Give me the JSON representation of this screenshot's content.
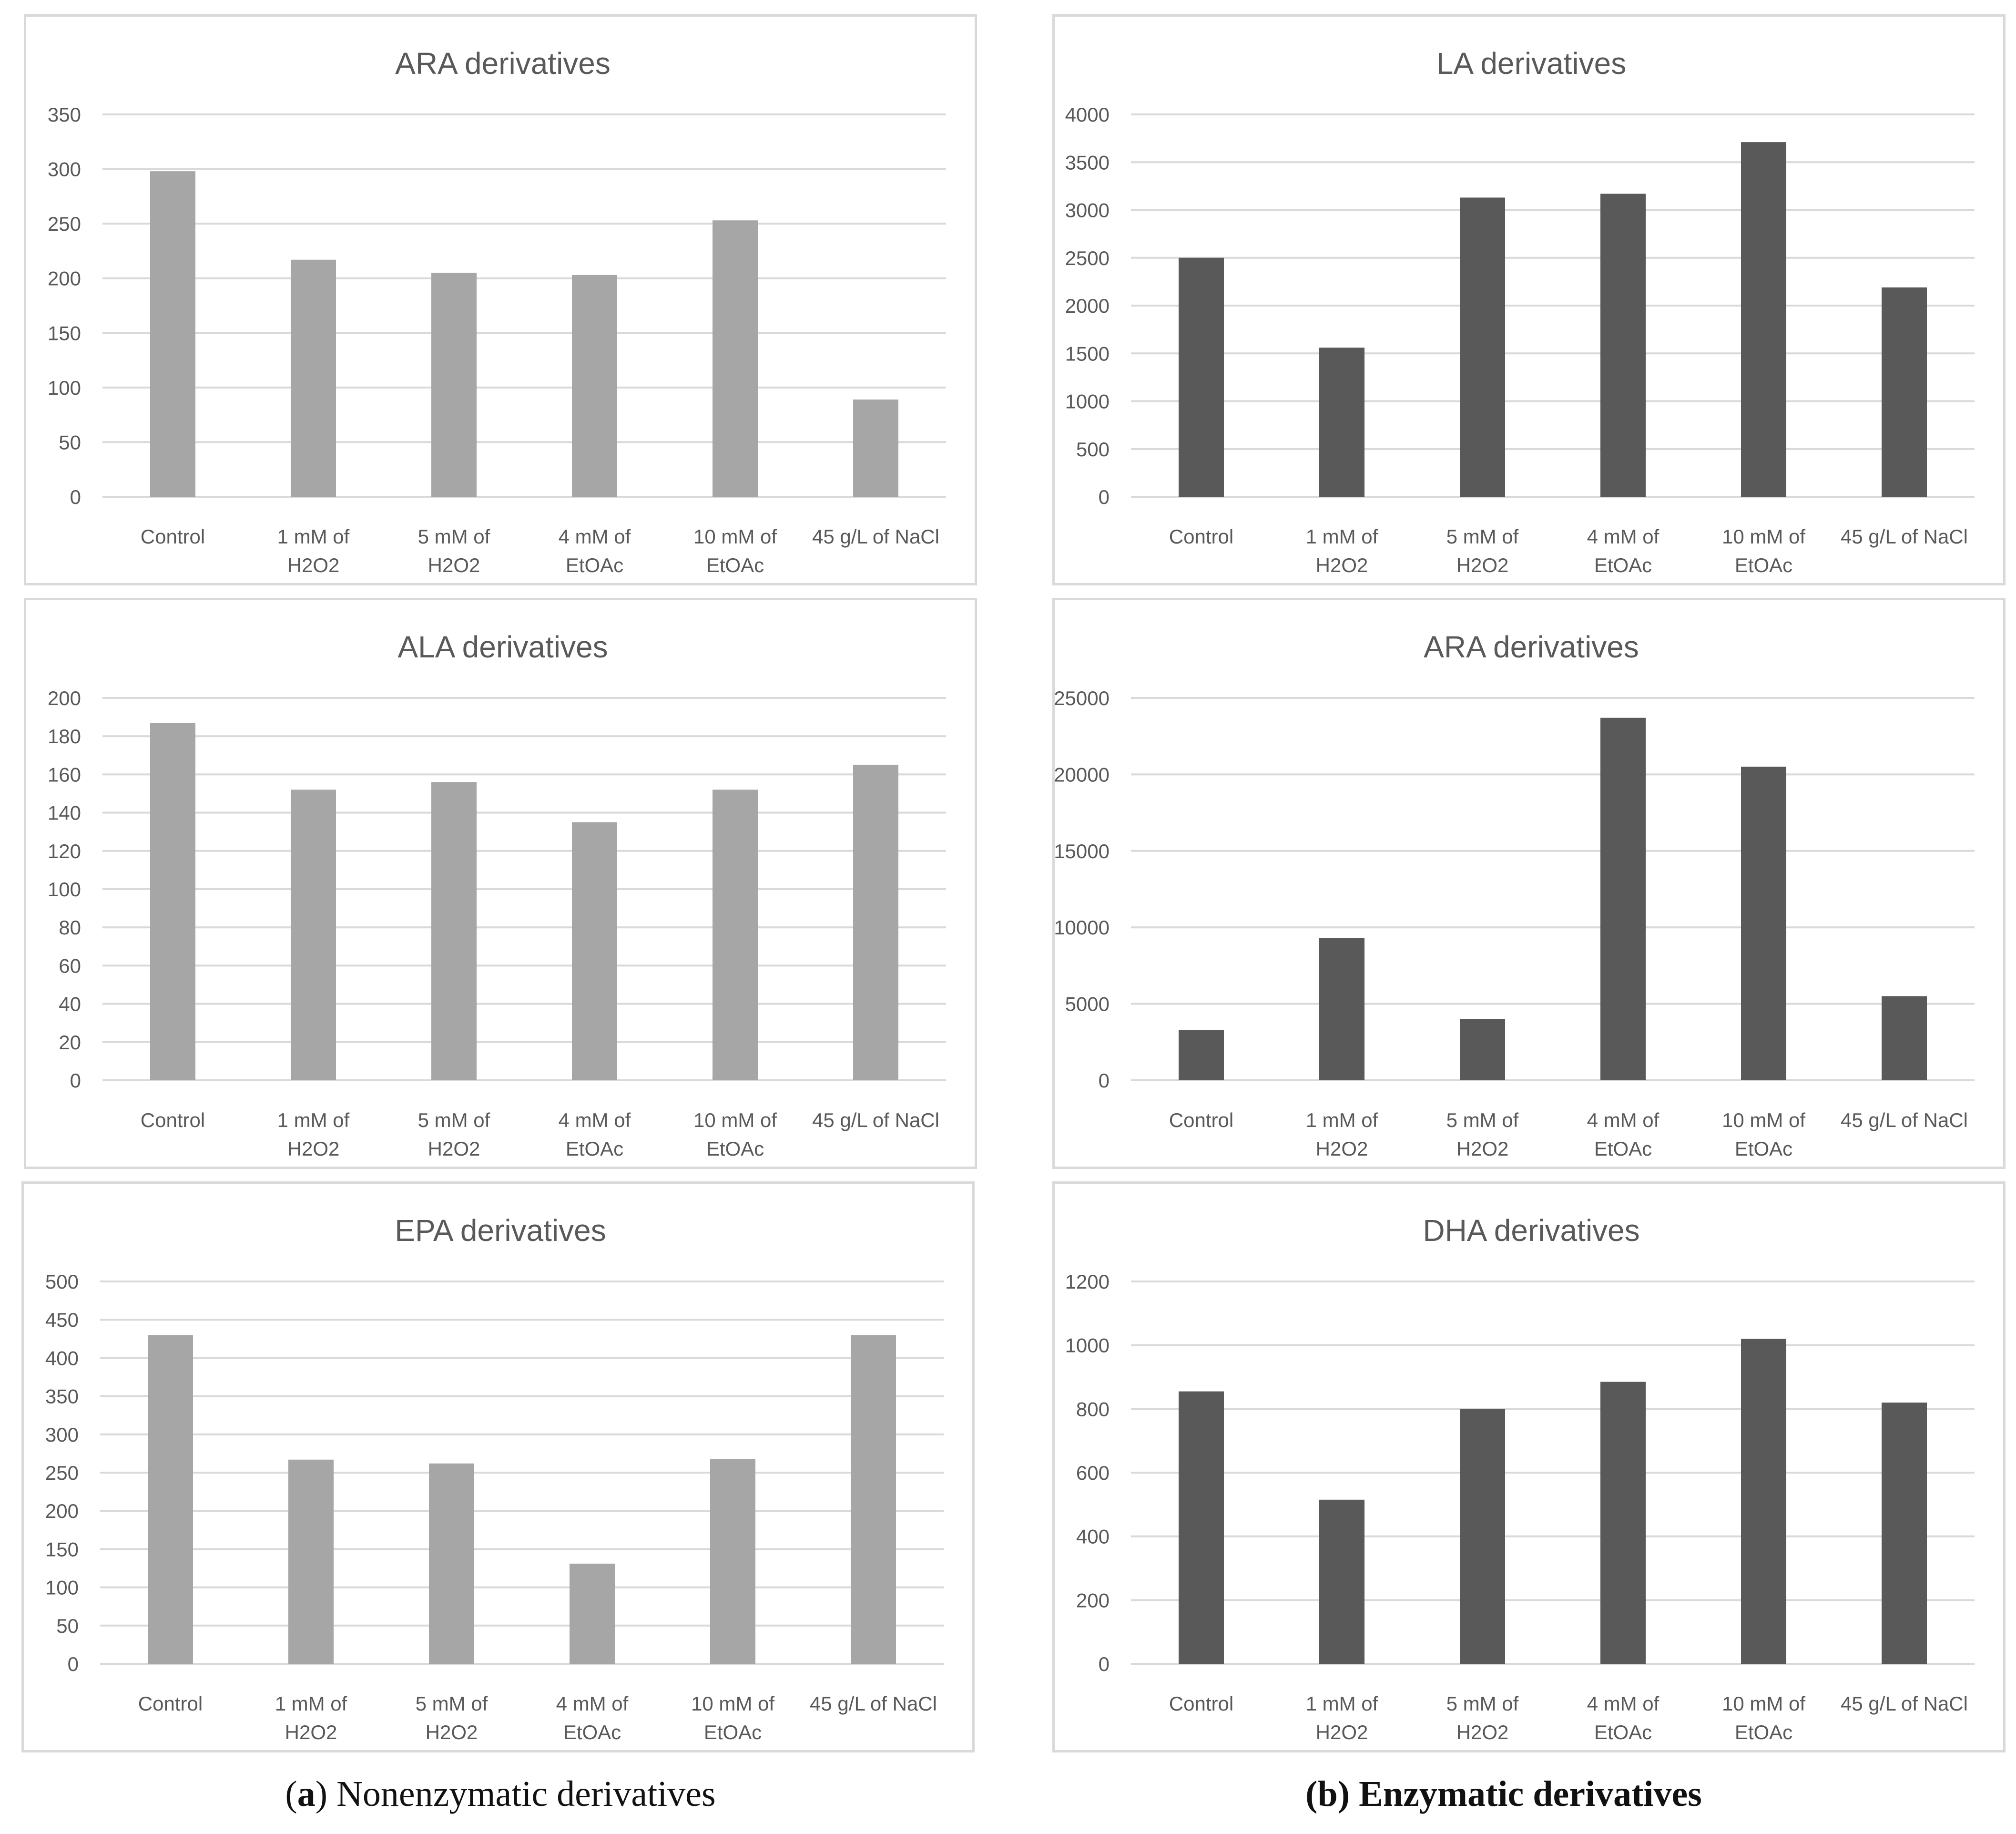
{
  "colors": {
    "nonenzymatic": "#a6a6a6",
    "enzymatic": "#595959"
  },
  "captions": {
    "a": {
      "letter": "a",
      "text": " Nonenzymatic derivatives"
    },
    "b": {
      "letter": "b",
      "text": " Enzymatic derivatives"
    }
  },
  "chart_data": [
    {
      "type": "bar",
      "panel": "a",
      "title": "ARA derivatives",
      "categories": [
        [
          "Control"
        ],
        [
          "1 mM of",
          "H2O2"
        ],
        [
          "5 mM of",
          "H2O2"
        ],
        [
          "4 mM of",
          "EtOAc"
        ],
        [
          "10 mM of",
          "EtOAc"
        ],
        [
          "45 g/L of NaCl"
        ]
      ],
      "values": [
        298,
        217,
        205,
        203,
        253,
        89
      ],
      "yticks": [
        0,
        50,
        100,
        150,
        200,
        250,
        300,
        350
      ],
      "ylim": [
        0,
        350
      ],
      "grid": true,
      "color": "#a6a6a6"
    },
    {
      "type": "bar",
      "panel": "a",
      "title": "ALA derivatives",
      "categories": [
        [
          "Control"
        ],
        [
          "1 mM of",
          "H2O2"
        ],
        [
          "5 mM of",
          "H2O2"
        ],
        [
          "4 mM of",
          "EtOAc"
        ],
        [
          "10 mM of",
          "EtOAc"
        ],
        [
          "45 g/L of NaCl"
        ]
      ],
      "values": [
        187,
        152,
        156,
        135,
        152,
        165
      ],
      "yticks": [
        0,
        20,
        40,
        60,
        80,
        100,
        120,
        140,
        160,
        180,
        200
      ],
      "ylim": [
        0,
        200
      ],
      "grid": true,
      "color": "#a6a6a6"
    },
    {
      "type": "bar",
      "panel": "a",
      "title": "EPA derivatives",
      "categories": [
        [
          "Control"
        ],
        [
          "1 mM of",
          "H2O2"
        ],
        [
          "5 mM of",
          "H2O2"
        ],
        [
          "4 mM of",
          "EtOAc"
        ],
        [
          "10 mM of",
          "EtOAc"
        ],
        [
          "45 g/L of NaCl"
        ]
      ],
      "values": [
        430,
        267,
        262,
        131,
        268,
        430
      ],
      "yticks": [
        0,
        50,
        100,
        150,
        200,
        250,
        300,
        350,
        400,
        450,
        500
      ],
      "ylim": [
        0,
        500
      ],
      "grid": true,
      "color": "#a6a6a6"
    },
    {
      "type": "bar",
      "panel": "b",
      "title": "LA derivatives",
      "categories": [
        [
          "Control"
        ],
        [
          "1 mM of",
          "H2O2"
        ],
        [
          "5 mM of",
          "H2O2"
        ],
        [
          "4 mM of",
          "EtOAc"
        ],
        [
          "10 mM of",
          "EtOAc"
        ],
        [
          "45 g/L of NaCl"
        ]
      ],
      "values": [
        2500,
        1560,
        3130,
        3170,
        3710,
        2190
      ],
      "yticks": [
        0,
        500,
        1000,
        1500,
        2000,
        2500,
        3000,
        3500,
        4000
      ],
      "ylim": [
        0,
        4000
      ],
      "grid": true,
      "color": "#595959"
    },
    {
      "type": "bar",
      "panel": "b",
      "title": "ARA derivatives",
      "categories": [
        [
          "Control"
        ],
        [
          "1 mM of",
          "H2O2"
        ],
        [
          "5 mM of",
          "H2O2"
        ],
        [
          "4 mM of",
          "EtOAc"
        ],
        [
          "10 mM of",
          "EtOAc"
        ],
        [
          "45 g/L of NaCl"
        ]
      ],
      "values": [
        3300,
        9300,
        4000,
        23700,
        20500,
        5500
      ],
      "yticks": [
        0,
        5000,
        10000,
        15000,
        20000,
        25000
      ],
      "ylim": [
        0,
        25000
      ],
      "grid": true,
      "color": "#595959"
    },
    {
      "type": "bar",
      "panel": "b",
      "title": "DHA derivatives",
      "categories": [
        [
          "Control"
        ],
        [
          "1 mM of",
          "H2O2"
        ],
        [
          "5 mM of",
          "H2O2"
        ],
        [
          "4 mM of",
          "EtOAc"
        ],
        [
          "10 mM of",
          "EtOAc"
        ],
        [
          "45 g/L of NaCl"
        ]
      ],
      "values": [
        855,
        515,
        800,
        885,
        1020,
        820
      ],
      "yticks": [
        0,
        200,
        400,
        600,
        800,
        1000,
        1200
      ],
      "ylim": [
        0,
        1200
      ],
      "grid": true,
      "color": "#595959"
    }
  ]
}
